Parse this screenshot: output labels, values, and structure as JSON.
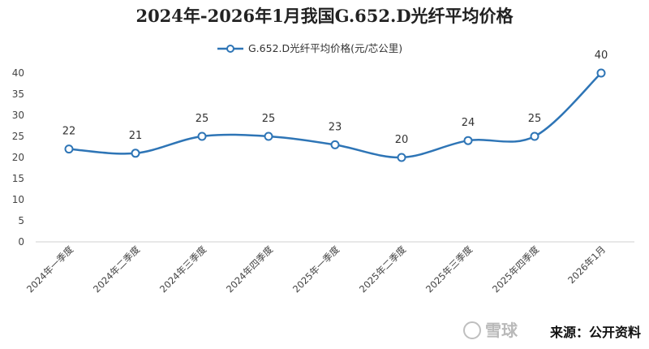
{
  "chart_data": {
    "type": "line",
    "title": "2024年-2026年1月我国G.652.D光纤平均价格",
    "categories": [
      "2024年一季度",
      "2024年二季度",
      "2024年三季度",
      "2024年四季度",
      "2025年一季度",
      "2025年二季度",
      "2025年三季度",
      "2025年四季度",
      "2026年1月"
    ],
    "series": [
      {
        "name": "G.652.D光纤平均价格(元/芯公里)",
        "values": [
          22,
          21,
          25,
          25,
          23,
          20,
          24,
          25,
          40
        ]
      }
    ],
    "yticks": [
      0,
      5,
      10,
      15,
      20,
      25,
      30,
      35,
      40
    ],
    "ylim": [
      0,
      40
    ],
    "legend_position": "top-center",
    "grid": false,
    "line_color": "#2e75b6",
    "marker_fill": "#ffffff"
  },
  "source_text": "来源：公开资料",
  "watermark": "雪球"
}
